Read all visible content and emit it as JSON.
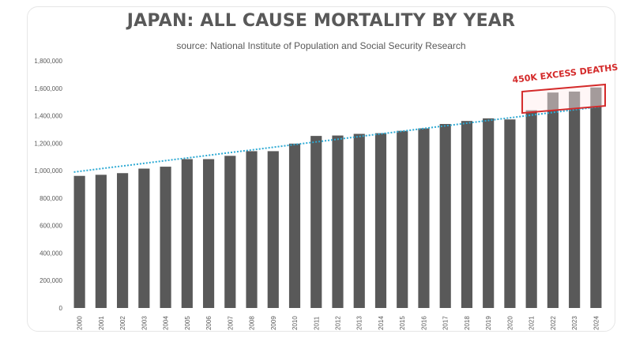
{
  "chart_data": {
    "type": "bar",
    "title": "JAPAN: ALL CAUSE MORTALITY BY YEAR",
    "subtitle": "source: National Institute of Population and Social Security Research",
    "categories": [
      "2000",
      "2001",
      "2002",
      "2003",
      "2004",
      "2005",
      "2006",
      "2007",
      "2008",
      "2009",
      "2010",
      "2011",
      "2012",
      "2013",
      "2014",
      "2015",
      "2016",
      "2017",
      "2018",
      "2019",
      "2020",
      "2021",
      "2022",
      "2023",
      "2024"
    ],
    "values": [
      962000,
      970000,
      982000,
      1015000,
      1029000,
      1084000,
      1084000,
      1108000,
      1142000,
      1142000,
      1197000,
      1253000,
      1256000,
      1268000,
      1273000,
      1290000,
      1308000,
      1340000,
      1362000,
      1381000,
      1373000,
      1440000,
      1569000,
      1576000,
      1606000
    ],
    "ylim": [
      0,
      1800000
    ],
    "yticks": [
      "0",
      "200,000",
      "400,000",
      "600,000",
      "800,000",
      "1,000,000",
      "1,200,000",
      "1,400,000",
      "1,600,000",
      "1,800,000"
    ],
    "trendline": {
      "start": 990000,
      "end": 1468000
    },
    "annotation": "450K EXCESS DEATHS",
    "grid": false,
    "colors": {
      "bar": "#595959",
      "trend": "#2eaad4",
      "annotation": "#d42a2a",
      "title": "#595959"
    }
  }
}
